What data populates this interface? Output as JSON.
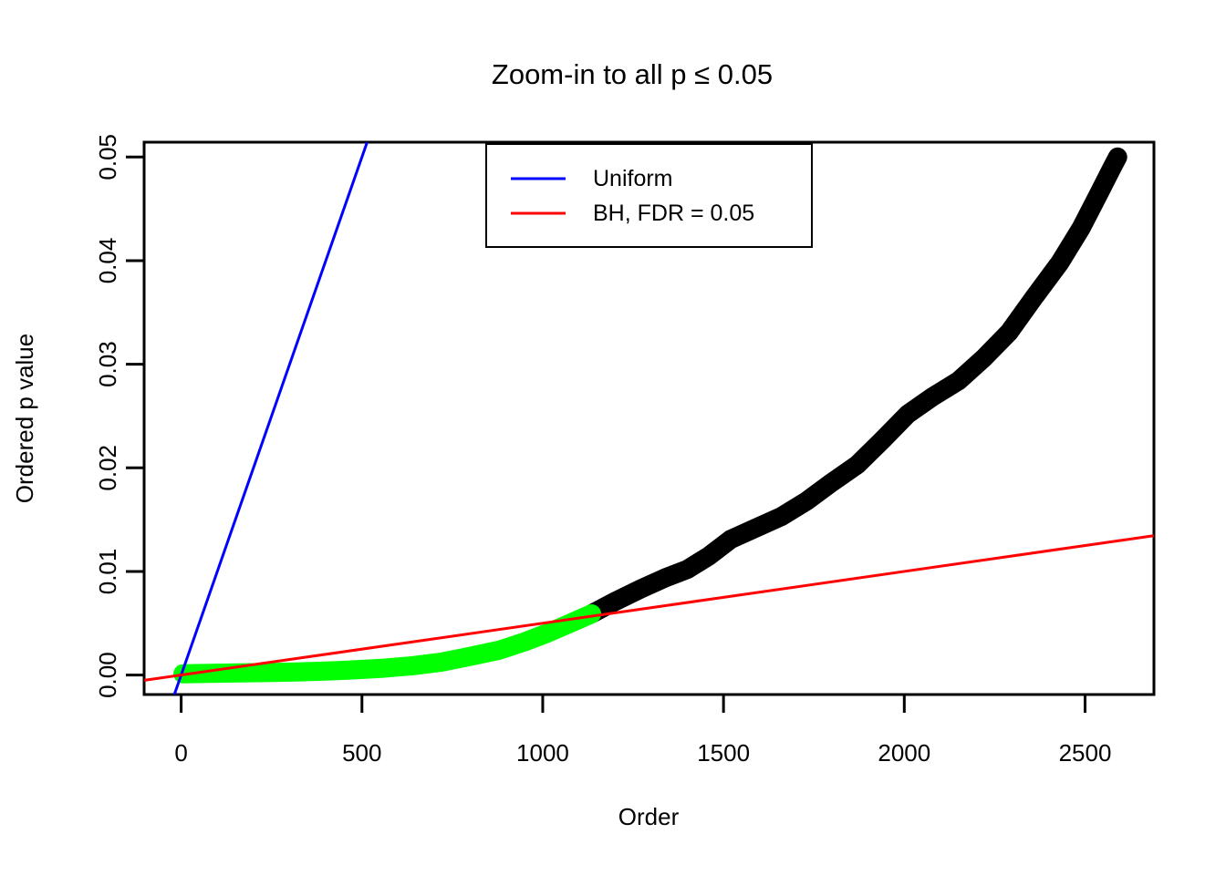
{
  "figure": {
    "background": "#ffffff"
  },
  "chart_data": {
    "type": "scatter",
    "title": "Zoom-in to all p ≤ 0.05",
    "xlabel": "Order",
    "ylabel": "Ordered p value",
    "grid": false,
    "x_axis": {
      "range": [
        0,
        2590
      ],
      "ticks": [
        0,
        500,
        1000,
        1500,
        2000,
        2500
      ],
      "tick_labels": [
        "0",
        "500",
        "1000",
        "1500",
        "2000",
        "2500"
      ]
    },
    "y_axis": {
      "range": [
        0,
        0.05
      ],
      "ticks": [
        0,
        0.01,
        0.02,
        0.03,
        0.04,
        0.05
      ],
      "tick_labels": [
        "0.00",
        "0.01",
        "0.02",
        "0.03",
        "0.04",
        "0.05"
      ]
    },
    "legend": {
      "position": "top-center",
      "items": [
        {
          "label": "Uniform",
          "color": "#0000FF"
        },
        {
          "label": "BH, FDR = 0.05",
          "color": "#FF0000"
        }
      ]
    },
    "ref_lines": [
      {
        "name": "Uniform",
        "color": "#0000FF",
        "slope": 0.0001,
        "intercept": 0
      },
      {
        "name": "BH, FDR = 0.05",
        "color": "#FF0000",
        "slope": 5e-06,
        "intercept": 0
      }
    ],
    "series": [
      {
        "name": "ordered-p-values-not-bh-significant",
        "color": "#000000",
        "marker": "filled-circle",
        "anchor_points": [
          [
            1135,
            0.0059
          ],
          [
            1200,
            0.0071
          ],
          [
            1270,
            0.0083
          ],
          [
            1340,
            0.0094
          ],
          [
            1400,
            0.0102
          ],
          [
            1460,
            0.0115
          ],
          [
            1520,
            0.0131
          ],
          [
            1590,
            0.0142
          ],
          [
            1660,
            0.0153
          ],
          [
            1730,
            0.0168
          ],
          [
            1800,
            0.0186
          ],
          [
            1870,
            0.0203
          ],
          [
            1940,
            0.0227
          ],
          [
            2010,
            0.0252
          ],
          [
            2080,
            0.0269
          ],
          [
            2150,
            0.0284
          ],
          [
            2220,
            0.0306
          ],
          [
            2290,
            0.0331
          ],
          [
            2360,
            0.0365
          ],
          [
            2430,
            0.0398
          ],
          [
            2490,
            0.0432
          ],
          [
            2540,
            0.0466
          ],
          [
            2575,
            0.049
          ],
          [
            2590,
            0.05
          ]
        ]
      },
      {
        "name": "ordered-p-values-bh-significant",
        "color": "#00FF00",
        "marker": "filled-circle",
        "anchor_points": [
          [
            5,
            0.00012
          ],
          [
            80,
            0.00016
          ],
          [
            160,
            0.0002
          ],
          [
            240,
            0.00024
          ],
          [
            320,
            0.0003
          ],
          [
            400,
            0.00038
          ],
          [
            480,
            0.0005
          ],
          [
            560,
            0.00066
          ],
          [
            640,
            0.0009
          ],
          [
            720,
            0.00125
          ],
          [
            800,
            0.0018
          ],
          [
            880,
            0.0024
          ],
          [
            950,
            0.0032
          ],
          [
            1010,
            0.004
          ],
          [
            1070,
            0.0049
          ],
          [
            1135,
            0.0059
          ]
        ]
      }
    ],
    "n_points_total": 2590,
    "n_bh_significant": 1135
  }
}
